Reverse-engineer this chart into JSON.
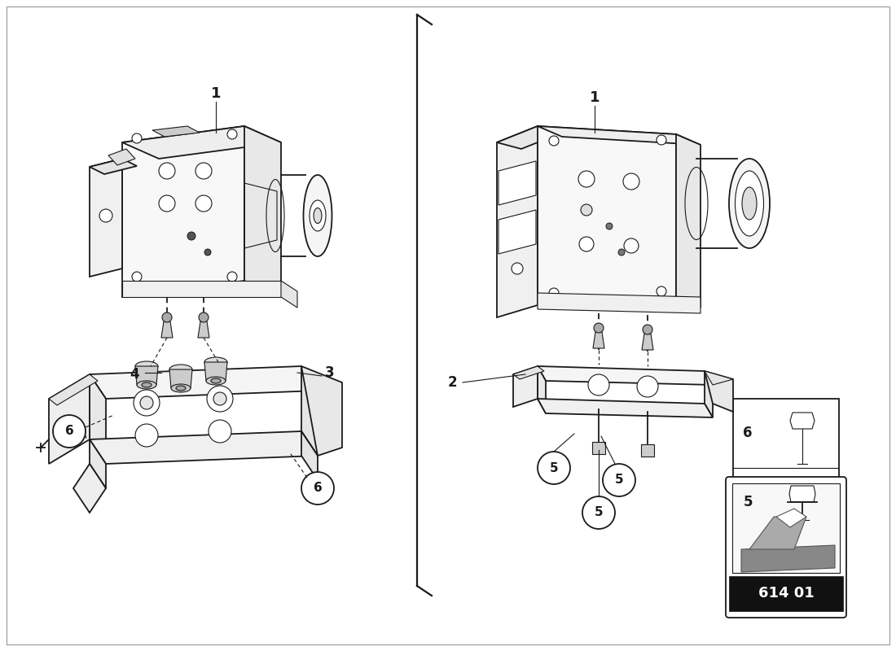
{
  "bg_color": "#ffffff",
  "line_color": "#1a1a1a",
  "part_number": "614 01",
  "fig_width": 11.0,
  "fig_height": 8.0,
  "dpi": 100
}
